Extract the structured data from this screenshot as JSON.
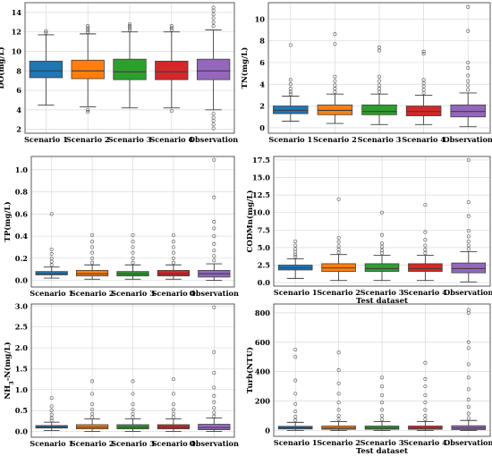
{
  "figure": {
    "categories": [
      "Scenario 1",
      "Scenario 2",
      "Scenario 3",
      "Scenario 4",
      "Observation"
    ],
    "colors": [
      "#1f77b4",
      "#ff7f0e",
      "#2ca02c",
      "#d62728",
      "#9467bd"
    ]
  },
  "chart_data": [
    {
      "type": "box",
      "ylabel": "DO(mg/L)",
      "xlabel": "",
      "ylim": [
        1.6,
        15.0
      ],
      "yticks": [
        2,
        4,
        6,
        8,
        10,
        12,
        14
      ],
      "categories": [
        "Scenario 1",
        "Scenario 2",
        "Scenario 3",
        "Scenario 4",
        "Observation"
      ],
      "boxes": [
        {
          "low": 4.5,
          "q1": 7.3,
          "median": 8.0,
          "q3": 9.0,
          "high": 11.7,
          "outliers": [
            11.9,
            12.1
          ]
        },
        {
          "low": 4.3,
          "q1": 7.2,
          "median": 8.0,
          "q3": 9.1,
          "high": 11.8,
          "outliers": [
            4.0,
            3.8,
            12.0,
            12.2,
            12.4,
            12.6
          ]
        },
        {
          "low": 4.2,
          "q1": 7.1,
          "median": 7.9,
          "q3": 9.2,
          "high": 12.0,
          "outliers": [
            12.2,
            12.4,
            12.6,
            12.8
          ]
        },
        {
          "low": 4.2,
          "q1": 7.1,
          "median": 7.9,
          "q3": 9.0,
          "high": 12.0,
          "outliers": [
            3.9,
            12.2,
            12.4,
            12.6
          ]
        },
        {
          "low": 4.0,
          "q1": 7.1,
          "median": 8.0,
          "q3": 9.2,
          "high": 12.2,
          "outliers": [
            3.6,
            3.2,
            2.9,
            2.5,
            2.1,
            12.6,
            13.0,
            13.4,
            13.8,
            14.2,
            14.5
          ]
        }
      ]
    },
    {
      "type": "box",
      "ylabel": "TN(mg/L)",
      "xlabel": "",
      "ylim": [
        -0.5,
        11.5
      ],
      "yticks": [
        0,
        2,
        4,
        6,
        8,
        10
      ],
      "categories": [
        "Scenario 1",
        "Scenario 2",
        "Scenario 3",
        "Scenario 4",
        "Observation"
      ],
      "boxes": [
        {
          "low": 0.6,
          "q1": 1.3,
          "median": 1.6,
          "q3": 2.0,
          "high": 2.9,
          "outliers": [
            3.1,
            3.3,
            3.6,
            4.0,
            4.4,
            7.6
          ]
        },
        {
          "low": 0.4,
          "q1": 1.2,
          "median": 1.6,
          "q3": 2.1,
          "high": 3.1,
          "outliers": [
            3.3,
            3.6,
            3.9,
            4.3,
            4.7,
            7.7,
            8.6
          ]
        },
        {
          "low": 0.3,
          "q1": 1.2,
          "median": 1.5,
          "q3": 2.1,
          "high": 3.1,
          "outliers": [
            3.3,
            3.6,
            3.9,
            4.3,
            4.7,
            7.1,
            7.4
          ]
        },
        {
          "low": 0.3,
          "q1": 1.1,
          "median": 1.5,
          "q3": 2.0,
          "high": 3.0,
          "outliers": [
            3.2,
            3.5,
            3.8,
            4.1,
            4.4,
            6.8,
            7.0
          ]
        },
        {
          "low": 0.1,
          "q1": 1.0,
          "median": 1.5,
          "q3": 2.1,
          "high": 3.2,
          "outliers": [
            3.5,
            3.9,
            4.3,
            4.8,
            5.5,
            6.0,
            8.9,
            11.1
          ]
        }
      ]
    },
    {
      "type": "box",
      "ylabel": "TP(mg/L)",
      "xlabel": "",
      "ylim": [
        -0.06,
        1.12
      ],
      "yticks": [
        0.0,
        0.2,
        0.4,
        0.6,
        0.8,
        1.0
      ],
      "categories": [
        "Scenario 1",
        "Scenario 2",
        "Scenario 3",
        "Scenario 4",
        "Observation"
      ],
      "boxes": [
        {
          "low": 0.02,
          "q1": 0.05,
          "median": 0.06,
          "q3": 0.08,
          "high": 0.12,
          "outliers": [
            0.14,
            0.17,
            0.2,
            0.24,
            0.28,
            0.6
          ]
        },
        {
          "low": 0.01,
          "q1": 0.04,
          "median": 0.06,
          "q3": 0.09,
          "high": 0.14,
          "outliers": [
            0.16,
            0.2,
            0.25,
            0.3,
            0.35,
            0.41
          ]
        },
        {
          "low": 0.01,
          "q1": 0.04,
          "median": 0.06,
          "q3": 0.08,
          "high": 0.14,
          "outliers": [
            0.16,
            0.2,
            0.25,
            0.3,
            0.35,
            0.41
          ]
        },
        {
          "low": 0.01,
          "q1": 0.04,
          "median": 0.06,
          "q3": 0.09,
          "high": 0.14,
          "outliers": [
            0.16,
            0.2,
            0.25,
            0.3,
            0.35,
            0.41
          ]
        },
        {
          "low": 0.0,
          "q1": 0.03,
          "median": 0.06,
          "q3": 0.09,
          "high": 0.15,
          "outliers": [
            0.18,
            0.22,
            0.27,
            0.33,
            0.4,
            0.47,
            0.53,
            0.75,
            1.09
          ]
        }
      ]
    },
    {
      "type": "box",
      "ylabel": "CODMn(mg/L)",
      "xlabel": "Test dataset",
      "ylim": [
        -0.5,
        18.0
      ],
      "yticks": [
        0.0,
        2.5,
        5.0,
        7.5,
        10.0,
        12.5,
        15.0,
        17.5
      ],
      "categories": [
        "Scenario 1",
        "Scenario 2",
        "Scenario 3",
        "Scenario 4",
        "Observation"
      ],
      "boxes": [
        {
          "low": 0.6,
          "q1": 1.8,
          "median": 2.1,
          "q3": 2.5,
          "high": 3.4,
          "outliers": [
            3.7,
            4.0,
            4.4,
            4.8,
            5.3,
            5.9
          ]
        },
        {
          "low": 0.3,
          "q1": 1.6,
          "median": 2.1,
          "q3": 2.7,
          "high": 4.0,
          "outliers": [
            4.3,
            4.7,
            5.2,
            5.8,
            6.4,
            11.9
          ]
        },
        {
          "low": 0.3,
          "q1": 1.6,
          "median": 2.0,
          "q3": 2.7,
          "high": 3.9,
          "outliers": [
            4.2,
            4.6,
            5.1,
            5.6,
            6.8,
            10.0
          ]
        },
        {
          "low": 0.3,
          "q1": 1.6,
          "median": 2.0,
          "q3": 2.7,
          "high": 3.9,
          "outliers": [
            4.2,
            4.7,
            5.3,
            6.1,
            7.2,
            11.1
          ]
        },
        {
          "low": 0.1,
          "q1": 1.4,
          "median": 2.0,
          "q3": 2.8,
          "high": 4.4,
          "outliers": [
            4.8,
            5.3,
            5.9,
            6.6,
            7.4,
            9.5,
            11.5,
            17.5
          ]
        }
      ]
    },
    {
      "type": "box",
      "ylabel": "NH3-N(mg/L)",
      "xlabel": "",
      "ylim": [
        -0.14,
        3.05
      ],
      "yticks": [
        0.0,
        0.5,
        1.0,
        1.5,
        2.0,
        2.5,
        3.0
      ],
      "categories": [
        "Scenario 1",
        "Scenario 2",
        "Scenario 3",
        "Scenario 4",
        "Observation"
      ],
      "boxes": [
        {
          "low": 0.02,
          "q1": 0.08,
          "median": 0.1,
          "q3": 0.14,
          "high": 0.22,
          "outliers": [
            0.26,
            0.32,
            0.4,
            0.5,
            0.6,
            0.8
          ]
        },
        {
          "low": 0.0,
          "q1": 0.06,
          "median": 0.1,
          "q3": 0.16,
          "high": 0.3,
          "outliers": [
            0.34,
            0.42,
            0.52,
            0.65,
            0.9,
            1.2
          ]
        },
        {
          "low": 0.0,
          "q1": 0.06,
          "median": 0.1,
          "q3": 0.16,
          "high": 0.3,
          "outliers": [
            0.34,
            0.42,
            0.52,
            0.65,
            0.9,
            1.2
          ]
        },
        {
          "low": 0.0,
          "q1": 0.06,
          "median": 0.1,
          "q3": 0.16,
          "high": 0.3,
          "outliers": [
            0.34,
            0.42,
            0.52,
            0.65,
            0.9,
            1.25
          ]
        },
        {
          "low": 0.0,
          "q1": 0.04,
          "median": 0.09,
          "q3": 0.17,
          "high": 0.32,
          "outliers": [
            0.36,
            0.45,
            0.56,
            0.7,
            0.85,
            1.05,
            1.4,
            1.9,
            2.97
          ]
        }
      ]
    },
    {
      "type": "box",
      "ylabel": "Turb(NTU)",
      "xlabel": "Test dataset",
      "ylim": [
        -40,
        860
      ],
      "yticks": [
        0,
        200,
        400,
        600,
        800
      ],
      "categories": [
        "Scenario 1",
        "Scenario 2",
        "Scenario 3",
        "Scenario 4",
        "Observation"
      ],
      "boxes": [
        {
          "low": 0,
          "q1": 10,
          "median": 18,
          "q3": 28,
          "high": 55,
          "outliers": [
            70,
            95,
            130,
            180,
            250,
            340,
            500,
            550
          ]
        },
        {
          "low": 0,
          "q1": 8,
          "median": 16,
          "q3": 30,
          "high": 60,
          "outliers": [
            75,
            100,
            140,
            190,
            250,
            320,
            410,
            530
          ]
        },
        {
          "low": 0,
          "q1": 8,
          "median": 16,
          "q3": 30,
          "high": 60,
          "outliers": [
            75,
            100,
            140,
            190,
            240,
            300,
            360
          ]
        },
        {
          "low": 0,
          "q1": 8,
          "median": 16,
          "q3": 30,
          "high": 60,
          "outliers": [
            75,
            100,
            140,
            190,
            240,
            300,
            350,
            460
          ]
        },
        {
          "low": 0,
          "q1": 6,
          "median": 16,
          "q3": 32,
          "high": 68,
          "outliers": [
            85,
            115,
            160,
            210,
            280,
            360,
            450,
            560,
            600,
            800,
            820
          ]
        }
      ]
    }
  ]
}
